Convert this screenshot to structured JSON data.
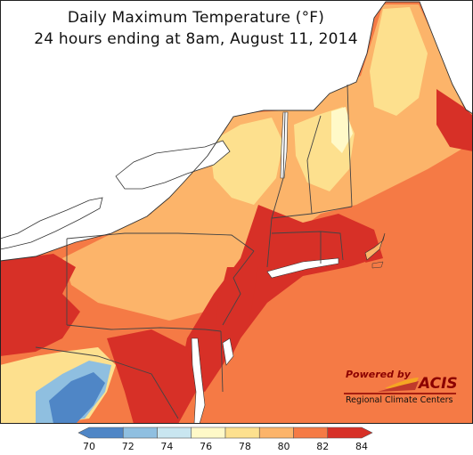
{
  "title": {
    "line1": "Daily Maximum Temperature (°F)",
    "line2": "24 hours ending at 8am, August 11, 2014"
  },
  "logo": {
    "powered_by": "Powered by",
    "brand": "ACIS",
    "organization": "Regional Climate Centers"
  },
  "legend": {
    "ticks": [
      "70",
      "72",
      "74",
      "76",
      "78",
      "80",
      "82",
      "84"
    ],
    "colors": [
      "#4f86c6",
      "#8fbfe0",
      "#c9e6f0",
      "#fff9c8",
      "#fde08e",
      "#fcb46a",
      "#f57a45",
      "#d73027"
    ]
  },
  "map_colors": {
    "water": "#ffffff",
    "hot": "#d73027",
    "warm": "#f57a45",
    "mild": "#fcb46a",
    "cool": "#fde08e",
    "cold": "#4f86c6",
    "boundary": "#444444"
  }
}
